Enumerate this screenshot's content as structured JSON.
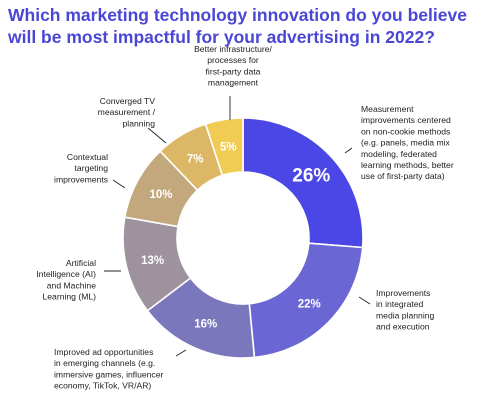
{
  "title": "Which marketing technology innovation do you believe\nwill be most impactful for your advertising in 2022?",
  "chart_data": {
    "type": "pie",
    "variant": "donut",
    "title": "Which marketing technology innovation do you believe will be most impactful for your advertising in 2022?",
    "unit": "%",
    "categories": [
      "Measurement improvements centered on non-cookie methods (e.g. panels, media mix modeling, federated learning methods, better use of first-party data)",
      "Improvements in integrated media planning and execution",
      "Improved ad opportunities in emerging channels (e.g. immersive games, influencer economy, TikTok, VR/AR)",
      "Artificial Intelligence (AI) and Machine Learning (ML)",
      "Contextual targeting improvements",
      "Converged TV measurement / planning",
      "Better infrastructure/ processes for first-party data management"
    ],
    "values": [
      26,
      22,
      16,
      13,
      10,
      7,
      5
    ],
    "value_labels": [
      "26%",
      "22%",
      "16%",
      "13%",
      "10%",
      "7%",
      "5%"
    ],
    "label_lines": [
      [
        "Measurement",
        "improvements centered",
        "on non-cookie methods",
        "(e.g. panels, media mix",
        "modeling, federated",
        "learning methods, better",
        "use of first-party data)"
      ],
      [
        "Improvements",
        "in integrated",
        "media planning",
        "and execution"
      ],
      [
        "Improved ad opportunities",
        "in emerging channels (e.g.",
        "immersive games, influencer",
        "economy, TikTok, VR/AR)"
      ],
      [
        "Artificial",
        "Intelligence (AI)",
        "and Machine",
        "Learning (ML)"
      ],
      [
        "Contextual",
        "targeting",
        "improvements"
      ],
      [
        "Converged TV",
        "measurement /",
        "planning"
      ],
      [
        "Better infrastructure/",
        "processes for",
        "first-party data",
        "management"
      ]
    ],
    "colors": [
      "#4a47e6",
      "#6a67d4",
      "#7b77bd",
      "#9e929e",
      "#c2a87c",
      "#dcb766",
      "#f0cc55"
    ],
    "legend": "none"
  }
}
